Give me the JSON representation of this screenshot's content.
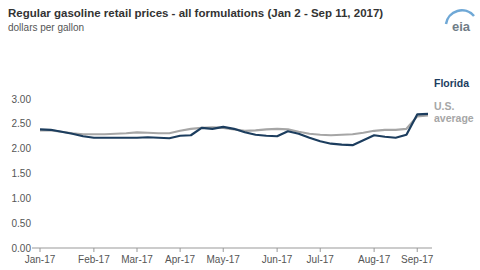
{
  "chart_data": {
    "type": "line",
    "title": "Regular gasoline retail prices - all formulations (Jan 2 - Sep 11, 2017)",
    "subtitle": "dollars per gallon",
    "source_logo": "eia",
    "categories": [
      "Jan-17",
      null,
      null,
      null,
      null,
      "Feb-17",
      null,
      null,
      null,
      "Mar-17",
      null,
      null,
      null,
      "Apr-17",
      null,
      null,
      null,
      "May-17",
      null,
      null,
      null,
      null,
      "Jun-17",
      null,
      null,
      null,
      "Jul-17",
      null,
      null,
      null,
      null,
      "Aug-17",
      null,
      null,
      null,
      "Sep-17",
      null
    ],
    "series": [
      {
        "name": "Florida",
        "color": "#1c3d5e",
        "values": [
          2.39,
          2.38,
          2.34,
          2.3,
          2.25,
          2.22,
          2.22,
          2.22,
          2.22,
          2.22,
          2.23,
          2.22,
          2.21,
          2.26,
          2.27,
          2.42,
          2.4,
          2.44,
          2.4,
          2.33,
          2.28,
          2.26,
          2.25,
          2.35,
          2.3,
          2.22,
          2.15,
          2.1,
          2.08,
          2.07,
          2.17,
          2.27,
          2.24,
          2.22,
          2.28,
          2.69,
          2.7
        ]
      },
      {
        "name": "U.S. average",
        "color": "#a6a6a6",
        "values": [
          2.37,
          2.37,
          2.34,
          2.31,
          2.29,
          2.29,
          2.29,
          2.3,
          2.31,
          2.33,
          2.32,
          2.31,
          2.31,
          2.36,
          2.4,
          2.42,
          2.43,
          2.42,
          2.39,
          2.36,
          2.37,
          2.39,
          2.4,
          2.39,
          2.34,
          2.3,
          2.28,
          2.27,
          2.28,
          2.29,
          2.32,
          2.36,
          2.38,
          2.38,
          2.4,
          2.65,
          2.67
        ]
      }
    ],
    "ylim": [
      0,
      3
    ],
    "yticks": [
      {
        "value": 0,
        "label": "0.00"
      },
      {
        "value": 0.5,
        "label": "0.50"
      },
      {
        "value": 1,
        "label": "1.00"
      },
      {
        "value": 1.5,
        "label": "1.50"
      },
      {
        "value": 2,
        "label": "2.00"
      },
      {
        "value": 2.5,
        "label": "2.50"
      },
      {
        "value": 3,
        "label": "3.00"
      }
    ],
    "grid": false,
    "legend": "right"
  }
}
